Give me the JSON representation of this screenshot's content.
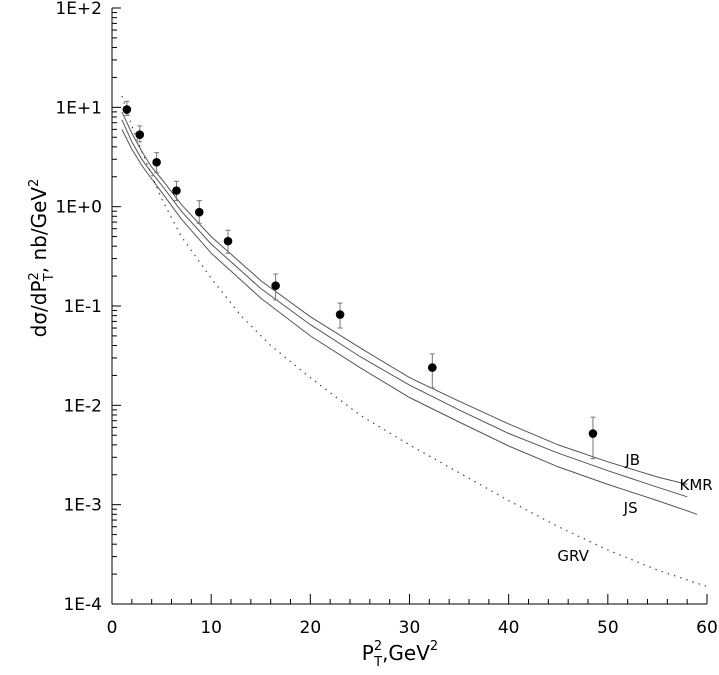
{
  "chart_data": {
    "type": "line",
    "title": "",
    "xlabel": "P_T^2, GeV^2",
    "xlabel_parts": {
      "base": "P",
      "sup": "2",
      "sub": "T",
      "rest": ",GeV",
      "unit_sup": "2"
    },
    "ylabel": "dσ/dP_T^2, nb/GeV^2",
    "ylabel_parts": {
      "a": "dσ/dP",
      "sup1": "2",
      "sub1": "T",
      "b": ", nb/GeV",
      "sup2": "2"
    },
    "yscale": "log",
    "xlim": [
      0,
      60
    ],
    "ylim": [
      0.0001,
      100
    ],
    "xticks": [
      0,
      10,
      20,
      30,
      40,
      50,
      60
    ],
    "xtick_labels": [
      "0",
      "10",
      "20",
      "30",
      "40",
      "50",
      "60"
    ],
    "yticks": [
      0.0001,
      0.001,
      0.01,
      0.1,
      1,
      10,
      100
    ],
    "ytick_labels": [
      "1E-4",
      "1E-3",
      "1E-2",
      "1E-1",
      "1E+0",
      "1E+1",
      "1E+2"
    ],
    "points": {
      "name": "data",
      "x": [
        1.5,
        2.8,
        4.5,
        6.5,
        8.8,
        11.7,
        16.5,
        23.0,
        32.3,
        48.5
      ],
      "y": [
        9.5,
        5.3,
        2.8,
        1.45,
        0.88,
        0.45,
        0.16,
        0.082,
        0.024,
        0.0052
      ],
      "err_low": [
        8.3,
        4.5,
        2.2,
        1.15,
        0.68,
        0.34,
        0.115,
        0.06,
        0.015,
        0.0029
      ],
      "err_high": [
        11.5,
        6.5,
        3.5,
        1.8,
        1.15,
        0.58,
        0.21,
        0.107,
        0.033,
        0.0076
      ]
    },
    "series": [
      {
        "name": "JB",
        "style": "solid",
        "x": [
          1,
          2,
          3,
          4,
          5,
          7,
          10,
          15,
          20,
          25,
          30,
          35,
          40,
          45,
          50,
          55,
          58
        ],
        "y": [
          9.0,
          5.5,
          3.6,
          2.5,
          1.9,
          1.05,
          0.5,
          0.18,
          0.078,
          0.038,
          0.019,
          0.011,
          0.0065,
          0.004,
          0.0027,
          0.0019,
          0.0016
        ]
      },
      {
        "name": "KMR",
        "style": "solid",
        "x": [
          1,
          2,
          3,
          4,
          5,
          7,
          10,
          15,
          20,
          25,
          30,
          35,
          40,
          45,
          50,
          55,
          58
        ],
        "y": [
          7.5,
          4.5,
          3.0,
          2.2,
          1.65,
          0.9,
          0.42,
          0.15,
          0.065,
          0.031,
          0.016,
          0.009,
          0.0052,
          0.0033,
          0.0022,
          0.0015,
          0.0012
        ]
      },
      {
        "name": "JS",
        "style": "solid",
        "x": [
          1,
          2,
          3,
          4,
          5,
          7,
          10,
          15,
          20,
          25,
          30,
          35,
          40,
          45,
          50,
          55,
          59
        ],
        "y": [
          6.0,
          3.8,
          2.6,
          1.9,
          1.4,
          0.75,
          0.34,
          0.12,
          0.05,
          0.024,
          0.012,
          0.0068,
          0.0039,
          0.0024,
          0.0016,
          0.0011,
          0.0008
        ]
      },
      {
        "name": "GRV",
        "style": "dotted",
        "x": [
          1,
          2,
          3,
          4,
          5,
          7,
          10,
          13,
          16,
          20,
          25,
          30,
          35,
          40,
          45,
          50,
          55,
          60
        ],
        "y": [
          13.0,
          6.5,
          3.6,
          2.1,
          1.2,
          0.5,
          0.19,
          0.08,
          0.04,
          0.019,
          0.008,
          0.004,
          0.0021,
          0.0011,
          0.0006,
          0.00035,
          0.00022,
          0.00015
        ]
      }
    ],
    "curve_labels": [
      {
        "text": "JB",
        "x": 52.5,
        "y": 0.0025
      },
      {
        "text": "KMR",
        "x": 58.9,
        "y": 0.0014
      },
      {
        "text": "JS",
        "x": 52.3,
        "y": 0.00082
      },
      {
        "text": "GRV",
        "x": 46.5,
        "y": 0.00027
      }
    ],
    "grid": false,
    "legend": "none (inline labels)"
  }
}
